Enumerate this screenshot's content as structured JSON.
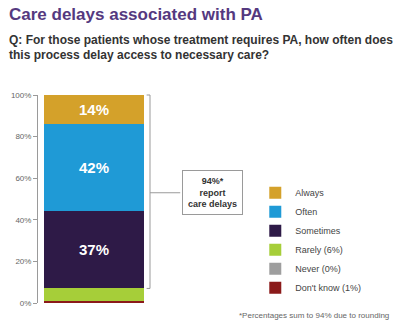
{
  "chart_data": {
    "type": "bar",
    "stacked": true,
    "title": "Care delays associated with PA",
    "subtitle": "Q: For those patients whose treatment requires PA, how often does this process delay access to necessary care?",
    "categories": [
      null
    ],
    "series": [
      {
        "name": "Don't know (1%)",
        "color": "#8b1a1a",
        "values": [
          1
        ]
      },
      {
        "name": "Never (0%)",
        "color": "#9e9e9e",
        "values": [
          0
        ]
      },
      {
        "name": "Rarely (6%)",
        "color": "#a6ce39",
        "values": [
          6
        ]
      },
      {
        "name": "Sometimes",
        "color": "#2e1a47",
        "values": [
          37
        ],
        "value_labels": [
          "37%"
        ]
      },
      {
        "name": "Often",
        "color": "#1f9ad6",
        "values": [
          42
        ],
        "value_labels": [
          "42%"
        ]
      },
      {
        "name": "Always",
        "color": "#d4a12a",
        "values": [
          14
        ],
        "value_labels": [
          "14%"
        ]
      }
    ],
    "ylim": [
      0,
      100
    ],
    "yticks": [
      {
        "value": 0,
        "label": "0%"
      },
      {
        "value": 20,
        "label": "20%"
      },
      {
        "value": 40,
        "label": "40%"
      },
      {
        "value": 60,
        "label": "60%"
      },
      {
        "value": 80,
        "label": "80%"
      },
      {
        "value": 100,
        "label": "100%"
      }
    ],
    "grid": false,
    "legend": "right",
    "data_labels": true,
    "tick_labels": "y",
    "annotations": [
      {
        "text": [
          "94%*",
          "report",
          "care delays"
        ]
      },
      {
        "text": "*Percentages sum to 94% due to rounding"
      }
    ]
  }
}
